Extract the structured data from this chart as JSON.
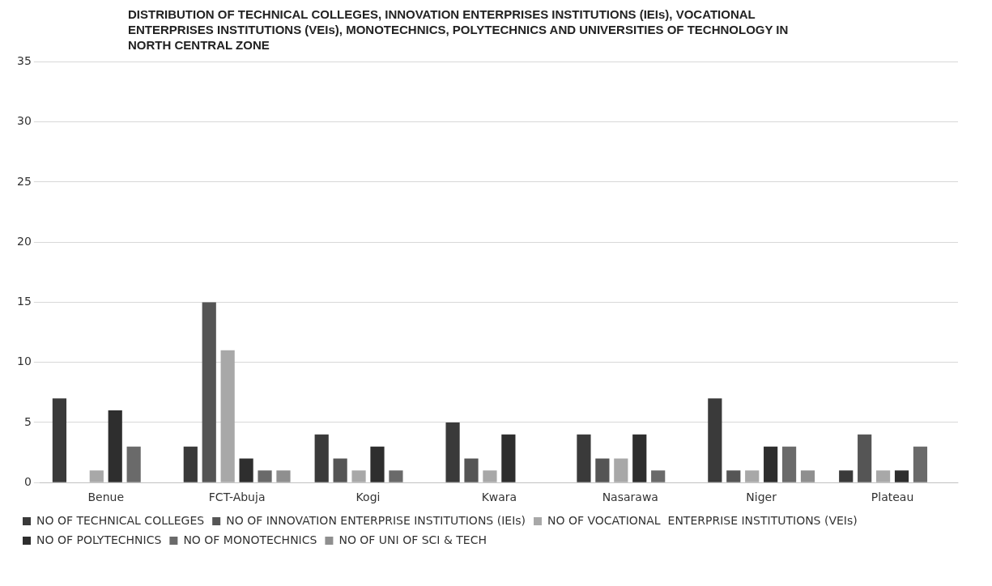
{
  "chart_data": {
    "type": "bar",
    "title": "DISTRIBUTION OF TECHNICAL COLLEGES, INNOVATION ENTERPRISES INSTITUTIONS (IEIs), VOCATIONAL ENTERPRISES INSTITUTIONS (VEIs), MONOTECHNICS, POLYTECHNICS AND UNIVERSITIES OF TECHNOLOGY IN NORTH CENTRAL ZONE",
    "categories": [
      "Benue",
      "FCT-Abuja",
      "Kogi",
      "Kwara",
      "Nasarawa",
      "Niger",
      "Plateau"
    ],
    "series": [
      {
        "name": "NO OF TECHNICAL COLLEGES",
        "color": "#3a3a3a",
        "values": [
          7,
          3,
          4,
          5,
          4,
          7,
          1
        ]
      },
      {
        "name": "NO OF INNOVATION ENTERPRISE INSTITUTIONS (IEIs)",
        "color": "#555555",
        "values": [
          0,
          15,
          2,
          2,
          2,
          1,
          4
        ]
      },
      {
        "name": "NO OF VOCATIONAL  ENTERPRISE INSTITUTIONS (VEIs)",
        "color": "#a8a8a8",
        "values": [
          1,
          11,
          1,
          1,
          2,
          1,
          1
        ]
      },
      {
        "name": "NO OF POLYTECHNICS",
        "color": "#2e2e2e",
        "values": [
          6,
          2,
          3,
          4,
          4,
          3,
          1
        ]
      },
      {
        "name": "NO OF MONOTECHNICS",
        "color": "#6a6a6a",
        "values": [
          3,
          1,
          1,
          0,
          1,
          3,
          3
        ]
      },
      {
        "name": "NO OF UNI OF SCI & TECH",
        "color": "#8f8f8f",
        "values": [
          0,
          1,
          0,
          0,
          0,
          1,
          0
        ]
      }
    ],
    "ylim": [
      0,
      35
    ],
    "yticks": [
      0,
      5,
      10,
      15,
      20,
      25,
      30,
      35
    ],
    "grid": "y",
    "legend": "bottom"
  }
}
